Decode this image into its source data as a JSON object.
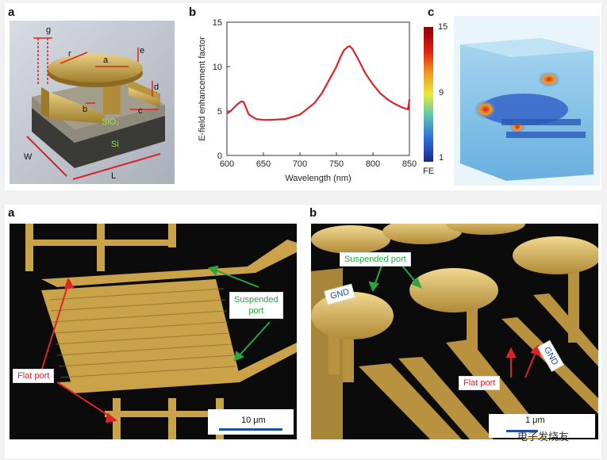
{
  "top": {
    "a": {
      "letter": "a",
      "dims": {
        "g": "g",
        "r": "r",
        "a": "a",
        "e": "e",
        "d": "d",
        "b": "b",
        "c": "c",
        "W": "W",
        "L": "L"
      },
      "materials": {
        "sio2": "SiO₂",
        "si": "Si"
      }
    },
    "b": {
      "letter": "b"
    },
    "c": {
      "letter": "c",
      "colorbar": {
        "ticks": [
          "15",
          "9",
          "1"
        ],
        "label": "FE"
      }
    }
  },
  "bottom": {
    "a": {
      "letter": "a",
      "flat_port": "Flat port",
      "suspended_port": "Suspended\nport",
      "scale": "10 μm"
    },
    "b": {
      "letter": "b",
      "suspended_port": "Suspended port",
      "gnd_left": "GND",
      "gnd_right": "GND",
      "flat_port": "Flat port",
      "scale": "1 μm",
      "watermark": "电子发烧友"
    }
  },
  "colors": {
    "accent_red": "#d9252a",
    "accent_green": "#2aa640",
    "gold": "#c9a24a",
    "scale_blue": "#1f4fa8"
  },
  "chart_data": {
    "type": "line",
    "xlabel": "Wavelength (nm)",
    "ylabel": "E-field enhancement factor",
    "xlim": [
      600,
      850
    ],
    "ylim": [
      0,
      15
    ],
    "xticks": [
      600,
      650,
      700,
      750,
      800,
      850
    ],
    "yticks": [
      0,
      5,
      10,
      15
    ],
    "series": [
      {
        "color": "#d9252a",
        "x": [
          600,
          605,
          610,
          615,
          620,
          623,
          630,
          640,
          650,
          660,
          680,
          700,
          720,
          730,
          740,
          750,
          755,
          760,
          765,
          768,
          772,
          780,
          790,
          800,
          810,
          820,
          830,
          840,
          848,
          850
        ],
        "values": [
          4.7,
          5.0,
          5.4,
          5.8,
          6.1,
          6.0,
          4.6,
          4.1,
          4.0,
          4.0,
          4.1,
          4.6,
          5.9,
          7.0,
          8.5,
          10.0,
          11.0,
          11.8,
          12.2,
          12.3,
          12.0,
          10.8,
          9.2,
          8.0,
          7.0,
          6.3,
          5.8,
          5.4,
          5.2,
          6.3
        ]
      }
    ]
  }
}
